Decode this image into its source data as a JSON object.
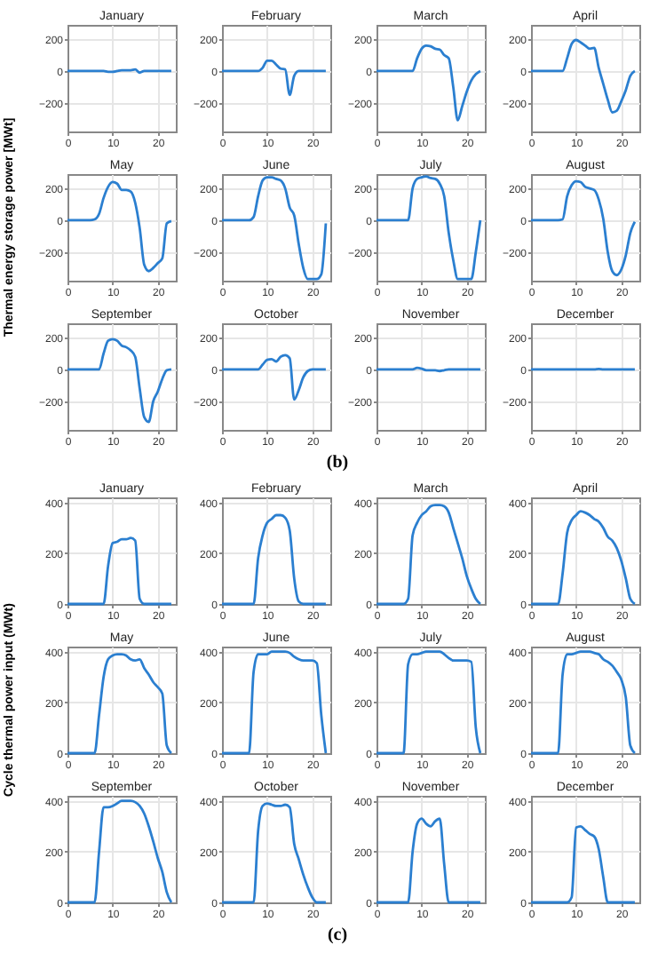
{
  "chart_data": [
    {
      "type": "line",
      "title": "January",
      "x": [
        0,
        1,
        2,
        3,
        4,
        5,
        6,
        7,
        8,
        9,
        10,
        11,
        12,
        13,
        14,
        15,
        16,
        17,
        18,
        19,
        20,
        21,
        22,
        23
      ],
      "values": [
        0,
        0,
        0,
        0,
        0,
        0,
        0,
        0,
        0,
        -5,
        -5,
        0,
        5,
        5,
        5,
        10,
        -10,
        0,
        0,
        0,
        0,
        0,
        0,
        0
      ],
      "color": "#2b7fd0",
      "xlim": [
        0,
        24
      ],
      "xticks": [
        0,
        10,
        20
      ],
      "ylim": [
        -380,
        290
      ],
      "yticks": [
        -200,
        0,
        200
      ],
      "grid": true
    },
    {
      "type": "line",
      "title": "February",
      "x": [
        0,
        1,
        2,
        3,
        4,
        5,
        6,
        7,
        8,
        9,
        10,
        11,
        12,
        13,
        14,
        15,
        16,
        17,
        18,
        19,
        20,
        21,
        22,
        23
      ],
      "values": [
        0,
        0,
        0,
        0,
        0,
        0,
        0,
        0,
        0,
        20,
        65,
        65,
        40,
        15,
        10,
        -150,
        -30,
        0,
        0,
        0,
        0,
        0,
        0,
        0
      ],
      "color": "#2b7fd0",
      "xlim": [
        0,
        24
      ],
      "xticks": [
        0,
        10,
        20
      ],
      "ylim": [
        -380,
        290
      ],
      "yticks": [
        -200,
        0,
        200
      ],
      "grid": true
    },
    {
      "type": "line",
      "title": "March",
      "x": [
        0,
        1,
        2,
        3,
        4,
        5,
        6,
        7,
        8,
        9,
        10,
        11,
        12,
        13,
        14,
        15,
        16,
        17,
        18,
        19,
        20,
        21,
        22,
        23
      ],
      "values": [
        0,
        0,
        0,
        0,
        0,
        0,
        0,
        0,
        0,
        80,
        140,
        160,
        155,
        140,
        135,
        100,
        80,
        -100,
        -310,
        -220,
        -130,
        -60,
        -20,
        0
      ],
      "color": "#2b7fd0",
      "xlim": [
        0,
        24
      ],
      "xticks": [
        0,
        10,
        20
      ],
      "ylim": [
        -380,
        290
      ],
      "yticks": [
        -200,
        0,
        200
      ],
      "grid": true
    },
    {
      "type": "line",
      "title": "April",
      "x": [
        0,
        1,
        2,
        3,
        4,
        5,
        6,
        7,
        8,
        9,
        10,
        11,
        12,
        13,
        14,
        15,
        16,
        17,
        18,
        19,
        20,
        21,
        22,
        23
      ],
      "values": [
        0,
        0,
        0,
        0,
        0,
        0,
        0,
        0,
        80,
        170,
        195,
        180,
        160,
        140,
        145,
        20,
        -80,
        -180,
        -260,
        -250,
        -190,
        -120,
        -30,
        0
      ],
      "color": "#2b7fd0",
      "xlim": [
        0,
        24
      ],
      "xticks": [
        0,
        10,
        20
      ],
      "ylim": [
        -380,
        290
      ],
      "yticks": [
        -200,
        0,
        200
      ],
      "grid": true
    },
    {
      "type": "line",
      "title": "May",
      "ylabel": "Thermal energy storage power [MWt]",
      "x": [
        0,
        1,
        2,
        3,
        4,
        5,
        6,
        7,
        8,
        9,
        10,
        11,
        12,
        13,
        14,
        15,
        16,
        17,
        18,
        19,
        20,
        21,
        22,
        23
      ],
      "values": [
        0,
        0,
        0,
        0,
        0,
        0,
        5,
        40,
        140,
        210,
        240,
        230,
        190,
        190,
        180,
        110,
        -50,
        -280,
        -320,
        -300,
        -270,
        -240,
        -20,
        -5
      ],
      "color": "#2b7fd0",
      "xlim": [
        0,
        24
      ],
      "xticks": [
        0,
        10,
        20
      ],
      "ylim": [
        -380,
        290
      ],
      "yticks": [
        -200,
        0,
        200
      ],
      "grid": true
    },
    {
      "type": "line",
      "title": "June",
      "x": [
        0,
        1,
        2,
        3,
        4,
        5,
        6,
        7,
        8,
        9,
        10,
        11,
        12,
        13,
        14,
        15,
        16,
        17,
        18,
        19,
        20,
        21,
        22,
        23
      ],
      "values": [
        0,
        0,
        0,
        0,
        0,
        0,
        0,
        20,
        150,
        250,
        270,
        270,
        260,
        250,
        200,
        80,
        30,
        -150,
        -300,
        -370,
        -370,
        -370,
        -340,
        -20
      ],
      "color": "#2b7fd0",
      "xlim": [
        0,
        24
      ],
      "xticks": [
        0,
        10,
        20
      ],
      "ylim": [
        -380,
        290
      ],
      "yticks": [
        -200,
        0,
        200
      ],
      "grid": true
    },
    {
      "type": "line",
      "title": "July",
      "x": [
        0,
        1,
        2,
        3,
        4,
        5,
        6,
        7,
        8,
        9,
        10,
        11,
        12,
        13,
        14,
        15,
        16,
        17,
        18,
        19,
        20,
        21,
        22,
        23
      ],
      "values": [
        0,
        0,
        0,
        0,
        0,
        0,
        0,
        0,
        200,
        260,
        270,
        275,
        265,
        260,
        230,
        150,
        -80,
        -250,
        -370,
        -370,
        -370,
        -370,
        -200,
        0
      ],
      "color": "#2b7fd0",
      "xlim": [
        0,
        24
      ],
      "xticks": [
        0,
        10,
        20
      ],
      "ylim": [
        -380,
        290
      ],
      "yticks": [
        -200,
        0,
        200
      ],
      "grid": true
    },
    {
      "type": "line",
      "title": "August",
      "x": [
        0,
        1,
        2,
        3,
        4,
        5,
        6,
        7,
        8,
        9,
        10,
        11,
        12,
        13,
        14,
        15,
        16,
        17,
        18,
        19,
        20,
        21,
        22,
        23
      ],
      "values": [
        0,
        0,
        0,
        0,
        0,
        0,
        0,
        5,
        150,
        220,
        245,
        240,
        210,
        200,
        190,
        130,
        10,
        -200,
        -320,
        -345,
        -310,
        -220,
        -80,
        -10
      ],
      "color": "#2b7fd0",
      "xlim": [
        0,
        24
      ],
      "xticks": [
        0,
        10,
        20
      ],
      "ylim": [
        -380,
        290
      ],
      "yticks": [
        -200,
        0,
        200
      ],
      "grid": true
    },
    {
      "type": "line",
      "title": "September",
      "x": [
        0,
        1,
        2,
        3,
        4,
        5,
        6,
        7,
        8,
        9,
        10,
        11,
        12,
        13,
        14,
        15,
        16,
        17,
        18,
        19,
        20,
        21,
        22,
        23
      ],
      "values": [
        0,
        0,
        0,
        0,
        0,
        0,
        0,
        0,
        100,
        180,
        190,
        180,
        150,
        140,
        120,
        80,
        -120,
        -300,
        -330,
        -200,
        -140,
        -60,
        -5,
        0
      ],
      "color": "#2b7fd0",
      "xlim": [
        0,
        24
      ],
      "xticks": [
        0,
        10,
        20
      ],
      "ylim": [
        -380,
        290
      ],
      "yticks": [
        -200,
        0,
        200
      ],
      "grid": true
    },
    {
      "type": "line",
      "title": "October",
      "x": [
        0,
        1,
        2,
        3,
        4,
        5,
        6,
        7,
        8,
        9,
        10,
        11,
        12,
        13,
        14,
        15,
        16,
        17,
        18,
        19,
        20,
        21,
        22,
        23
      ],
      "values": [
        0,
        0,
        0,
        0,
        0,
        0,
        0,
        0,
        0,
        30,
        60,
        65,
        50,
        80,
        90,
        70,
        -190,
        -130,
        -50,
        -10,
        0,
        0,
        0,
        0
      ],
      "color": "#2b7fd0",
      "xlim": [
        0,
        24
      ],
      "xticks": [
        0,
        10,
        20
      ],
      "ylim": [
        -380,
        290
      ],
      "yticks": [
        -200,
        0,
        200
      ],
      "grid": true
    },
    {
      "type": "line",
      "title": "November",
      "x": [
        0,
        1,
        2,
        3,
        4,
        5,
        6,
        7,
        8,
        9,
        10,
        11,
        12,
        13,
        14,
        15,
        16,
        17,
        18,
        19,
        20,
        21,
        22,
        23
      ],
      "values": [
        0,
        0,
        0,
        0,
        0,
        0,
        0,
        0,
        0,
        10,
        5,
        -5,
        -5,
        -5,
        -10,
        -5,
        0,
        0,
        0,
        0,
        0,
        0,
        0,
        0
      ],
      "color": "#2b7fd0",
      "xlim": [
        0,
        24
      ],
      "xticks": [
        0,
        10,
        20
      ],
      "ylim": [
        -380,
        290
      ],
      "yticks": [
        -200,
        0,
        200
      ],
      "grid": true
    },
    {
      "type": "line",
      "title": "December",
      "annotations": [
        "(b)"
      ],
      "x": [
        0,
        1,
        2,
        3,
        4,
        5,
        6,
        7,
        8,
        9,
        10,
        11,
        12,
        13,
        14,
        15,
        16,
        17,
        18,
        19,
        20,
        21,
        22,
        23
      ],
      "values": [
        0,
        0,
        0,
        0,
        0,
        0,
        0,
        0,
        0,
        0,
        0,
        0,
        0,
        0,
        0,
        3,
        0,
        0,
        0,
        0,
        0,
        0,
        0,
        0
      ],
      "color": "#2b7fd0",
      "xlim": [
        0,
        24
      ],
      "xticks": [
        0,
        10,
        20
      ],
      "ylim": [
        -380,
        290
      ],
      "yticks": [
        -200,
        0,
        200
      ],
      "grid": true
    },
    {
      "type": "line",
      "title": "January",
      "x": [
        0,
        1,
        2,
        3,
        4,
        5,
        6,
        7,
        8,
        9,
        10,
        11,
        12,
        13,
        14,
        15,
        16,
        17,
        18,
        19,
        20,
        21,
        22,
        23
      ],
      "values": [
        0,
        0,
        0,
        0,
        0,
        0,
        0,
        0,
        0,
        150,
        240,
        245,
        255,
        255,
        260,
        250,
        20,
        0,
        0,
        0,
        0,
        0,
        0,
        0
      ],
      "color": "#2b7fd0",
      "xlim": [
        0,
        24
      ],
      "xticks": [
        0,
        10,
        20
      ],
      "ylim": [
        0,
        420
      ],
      "yticks": [
        0,
        200,
        400
      ],
      "grid": true
    },
    {
      "type": "line",
      "title": "February",
      "x": [
        0,
        1,
        2,
        3,
        4,
        5,
        6,
        7,
        8,
        9,
        10,
        11,
        12,
        13,
        14,
        15,
        16,
        17,
        18,
        19,
        20,
        21,
        22,
        23
      ],
      "values": [
        0,
        0,
        0,
        0,
        0,
        0,
        0,
        0,
        180,
        270,
        320,
        335,
        350,
        350,
        340,
        290,
        100,
        10,
        0,
        0,
        0,
        0,
        0,
        0
      ],
      "color": "#2b7fd0",
      "xlim": [
        0,
        24
      ],
      "xticks": [
        0,
        10,
        20
      ],
      "ylim": [
        0,
        420
      ],
      "yticks": [
        0,
        200,
        400
      ],
      "grid": true
    },
    {
      "type": "line",
      "title": "March",
      "x": [
        0,
        1,
        2,
        3,
        4,
        5,
        6,
        7,
        8,
        9,
        10,
        11,
        12,
        13,
        14,
        15,
        16,
        17,
        18,
        19,
        20,
        21,
        22,
        23
      ],
      "values": [
        0,
        0,
        0,
        0,
        0,
        0,
        0,
        20,
        270,
        320,
        350,
        365,
        385,
        390,
        390,
        385,
        360,
        300,
        240,
        180,
        110,
        60,
        20,
        0
      ],
      "color": "#2b7fd0",
      "xlim": [
        0,
        24
      ],
      "xticks": [
        0,
        10,
        20
      ],
      "ylim": [
        0,
        420
      ],
      "yticks": [
        0,
        200,
        400
      ],
      "grid": true
    },
    {
      "type": "line",
      "title": "April",
      "x": [
        0,
        1,
        2,
        3,
        4,
        5,
        6,
        7,
        8,
        9,
        10,
        11,
        12,
        13,
        14,
        15,
        16,
        17,
        18,
        19,
        20,
        21,
        22,
        23
      ],
      "values": [
        0,
        0,
        0,
        0,
        0,
        0,
        0,
        120,
        280,
        330,
        350,
        365,
        360,
        350,
        335,
        325,
        300,
        265,
        250,
        220,
        170,
        100,
        20,
        0
      ],
      "color": "#2b7fd0",
      "xlim": [
        0,
        24
      ],
      "xticks": [
        0,
        10,
        20
      ],
      "ylim": [
        0,
        420
      ],
      "yticks": [
        0,
        200,
        400
      ],
      "grid": true
    },
    {
      "type": "line",
      "title": "May",
      "ylabel": "Cycle thermal power input (MWt)",
      "x": [
        0,
        1,
        2,
        3,
        4,
        5,
        6,
        7,
        8,
        9,
        10,
        11,
        12,
        13,
        14,
        15,
        16,
        17,
        18,
        19,
        20,
        21,
        22,
        23
      ],
      "values": [
        0,
        0,
        0,
        0,
        0,
        0,
        0,
        150,
        300,
        370,
        385,
        390,
        390,
        385,
        370,
        365,
        370,
        335,
        310,
        280,
        260,
        235,
        30,
        0
      ],
      "color": "#2b7fd0",
      "xlim": [
        0,
        24
      ],
      "xticks": [
        0,
        10,
        20
      ],
      "ylim": [
        0,
        420
      ],
      "yticks": [
        0,
        200,
        400
      ],
      "grid": true
    },
    {
      "type": "line",
      "title": "June",
      "x": [
        0,
        1,
        2,
        3,
        4,
        5,
        6,
        7,
        8,
        9,
        10,
        11,
        12,
        13,
        14,
        15,
        16,
        17,
        18,
        19,
        20,
        21,
        22,
        23
      ],
      "values": [
        0,
        0,
        0,
        0,
        0,
        0,
        0,
        320,
        390,
        390,
        390,
        400,
        400,
        400,
        400,
        395,
        380,
        370,
        365,
        365,
        365,
        355,
        150,
        0
      ],
      "color": "#2b7fd0",
      "xlim": [
        0,
        24
      ],
      "xticks": [
        0,
        10,
        20
      ],
      "ylim": [
        0,
        420
      ],
      "yticks": [
        0,
        200,
        400
      ],
      "grid": true
    },
    {
      "type": "line",
      "title": "July",
      "x": [
        0,
        1,
        2,
        3,
        4,
        5,
        6,
        7,
        8,
        9,
        10,
        11,
        12,
        13,
        14,
        15,
        16,
        17,
        18,
        19,
        20,
        21,
        22,
        23
      ],
      "values": [
        0,
        0,
        0,
        0,
        0,
        0,
        0,
        350,
        390,
        390,
        395,
        400,
        400,
        400,
        400,
        390,
        375,
        365,
        365,
        365,
        365,
        360,
        100,
        0
      ],
      "color": "#2b7fd0",
      "xlim": [
        0,
        24
      ],
      "xticks": [
        0,
        10,
        20
      ],
      "ylim": [
        0,
        420
      ],
      "yticks": [
        0,
        200,
        400
      ],
      "grid": true
    },
    {
      "type": "line",
      "title": "August",
      "x": [
        0,
        1,
        2,
        3,
        4,
        5,
        6,
        7,
        8,
        9,
        10,
        11,
        12,
        13,
        14,
        15,
        16,
        17,
        18,
        19,
        20,
        21,
        22,
        23
      ],
      "values": [
        0,
        0,
        0,
        0,
        0,
        0,
        0,
        310,
        390,
        390,
        395,
        400,
        400,
        400,
        395,
        390,
        370,
        360,
        345,
        320,
        290,
        220,
        30,
        0
      ],
      "color": "#2b7fd0",
      "xlim": [
        0,
        24
      ],
      "xticks": [
        0,
        10,
        20
      ],
      "ylim": [
        0,
        420
      ],
      "yticks": [
        0,
        200,
        400
      ],
      "grid": true
    },
    {
      "type": "line",
      "title": "September",
      "x": [
        0,
        1,
        2,
        3,
        4,
        5,
        6,
        7,
        8,
        9,
        10,
        11,
        12,
        13,
        14,
        15,
        16,
        17,
        18,
        19,
        20,
        21,
        22,
        23
      ],
      "values": [
        0,
        0,
        0,
        0,
        0,
        0,
        0,
        200,
        375,
        375,
        380,
        390,
        400,
        400,
        400,
        395,
        380,
        350,
        300,
        240,
        175,
        120,
        40,
        0
      ],
      "color": "#2b7fd0",
      "xlim": [
        0,
        24
      ],
      "xticks": [
        0,
        10,
        20
      ],
      "ylim": [
        0,
        420
      ],
      "yticks": [
        0,
        200,
        400
      ],
      "grid": true
    },
    {
      "type": "line",
      "title": "October",
      "x": [
        0,
        1,
        2,
        3,
        4,
        5,
        6,
        7,
        8,
        9,
        10,
        11,
        12,
        13,
        14,
        15,
        16,
        17,
        18,
        19,
        20,
        21,
        22,
        23
      ],
      "values": [
        0,
        0,
        0,
        0,
        0,
        0,
        0,
        0,
        280,
        380,
        390,
        385,
        380,
        380,
        385,
        375,
        230,
        170,
        110,
        60,
        20,
        0,
        0,
        0
      ],
      "color": "#2b7fd0",
      "xlim": [
        0,
        24
      ],
      "xticks": [
        0,
        10,
        20
      ],
      "ylim": [
        0,
        420
      ],
      "yticks": [
        0,
        200,
        400
      ],
      "grid": true
    },
    {
      "type": "line",
      "title": "November",
      "x": [
        0,
        1,
        2,
        3,
        4,
        5,
        6,
        7,
        8,
        9,
        10,
        11,
        12,
        13,
        14,
        15,
        16,
        17,
        18,
        19,
        20,
        21,
        22,
        23
      ],
      "values": [
        0,
        0,
        0,
        0,
        0,
        0,
        0,
        0,
        200,
        310,
        330,
        310,
        300,
        320,
        330,
        150,
        0,
        0,
        0,
        0,
        0,
        0,
        0,
        0
      ],
      "color": "#2b7fd0",
      "xlim": [
        0,
        24
      ],
      "xticks": [
        0,
        10,
        20
      ],
      "ylim": [
        0,
        420
      ],
      "yticks": [
        0,
        200,
        400
      ],
      "grid": true
    },
    {
      "type": "line",
      "title": "December",
      "annotations": [
        "(c)"
      ],
      "x": [
        0,
        1,
        2,
        3,
        4,
        5,
        6,
        7,
        8,
        9,
        10,
        11,
        12,
        13,
        14,
        15,
        16,
        17,
        18,
        19,
        20,
        21,
        22,
        23
      ],
      "values": [
        0,
        0,
        0,
        0,
        0,
        0,
        0,
        0,
        0,
        20,
        295,
        300,
        285,
        270,
        260,
        210,
        100,
        0,
        0,
        0,
        0,
        0,
        0,
        0
      ],
      "color": "#2b7fd0",
      "xlim": [
        0,
        24
      ],
      "xticks": [
        0,
        10,
        20
      ],
      "ylim": [
        0,
        420
      ],
      "yticks": [
        0,
        200,
        400
      ],
      "grid": true
    }
  ]
}
